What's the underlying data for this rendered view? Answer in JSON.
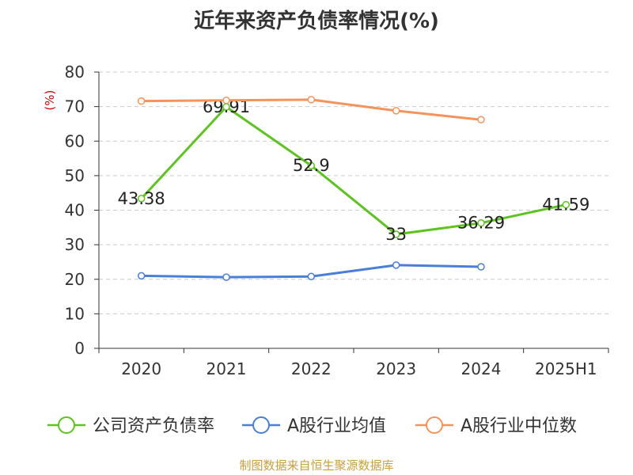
{
  "title": "近年来资产负债率情况(%)",
  "source": "制图数据来自恒生聚源数据库",
  "chart_data": {
    "type": "line",
    "categories": [
      "2020",
      "2021",
      "2022",
      "2023",
      "2024",
      "2025H1"
    ],
    "yunit": "(%)",
    "ylim": [
      0,
      80
    ],
    "yticks": [
      0,
      10,
      20,
      30,
      40,
      50,
      60,
      70,
      80
    ],
    "grid": true,
    "legend_position": "bottom",
    "series": [
      {
        "name": "公司资产负债率",
        "color": "#5cc41e",
        "values": [
          43.38,
          69.91,
          52.9,
          33,
          36.29,
          41.59
        ],
        "labels": [
          "43.38",
          "69.91",
          "52.9",
          "33",
          "36.29",
          "41.59"
        ]
      },
      {
        "name": "A股行业均值",
        "color": "#4a7fd8",
        "values": [
          21.0,
          20.6,
          20.8,
          24.1,
          23.6,
          null
        ]
      },
      {
        "name": "A股行业中位数",
        "color": "#f5935a",
        "values": [
          71.6,
          71.8,
          72.0,
          68.8,
          66.2,
          null
        ]
      }
    ]
  }
}
